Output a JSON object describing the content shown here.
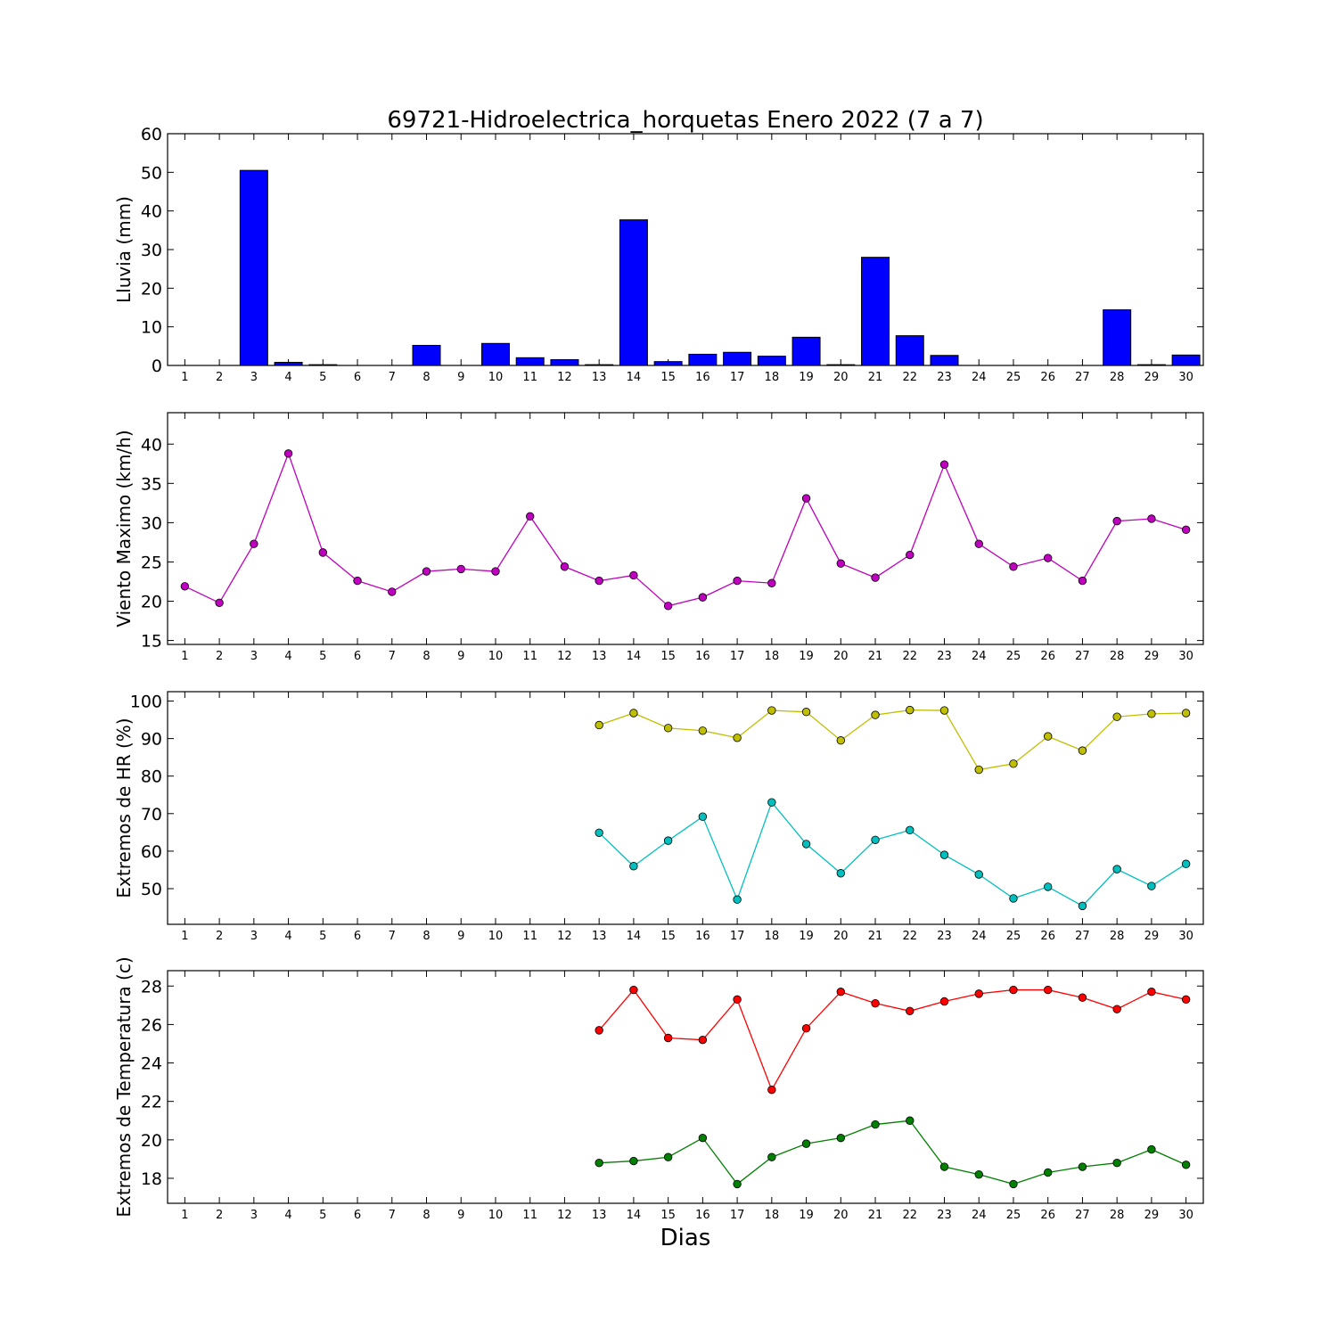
{
  "chart_data": {
    "title": "69721-Hidroelectrica_horquetas Enero 2022  (7 a 7)",
    "xlabel": "Dias",
    "categories": [
      "1",
      "2",
      "3",
      "4",
      "5",
      "6",
      "7",
      "8",
      "9",
      "10",
      "11",
      "12",
      "13",
      "14",
      "15",
      "16",
      "17",
      "18",
      "19",
      "20",
      "21",
      "22",
      "23",
      "24",
      "25",
      "26",
      "27",
      "28",
      "29",
      "30"
    ],
    "panels": [
      {
        "type": "bar",
        "ylabel": "Lluvia (mm)",
        "ylim": [
          0,
          60
        ],
        "yticks": [
          0,
          10,
          20,
          30,
          40,
          50,
          60
        ],
        "series": [
          {
            "color": "#0000ff",
            "values": [
              0,
              0,
              50.5,
              0.8,
              0.2,
              0,
              0,
              5.2,
              0,
              5.7,
              2.0,
              1.5,
              0.2,
              37.7,
              1.0,
              2.9,
              3.4,
              2.4,
              7.3,
              0.2,
              28.0,
              7.7,
              2.6,
              0,
              0,
              0,
              0,
              14.4,
              0.2,
              2.7
            ]
          }
        ]
      },
      {
        "type": "line",
        "ylabel": "Viento Maximo (km/h)",
        "ylim": [
          14.5,
          44
        ],
        "yticks": [
          15,
          20,
          25,
          30,
          35,
          40
        ],
        "series": [
          {
            "color": "#bf00bf",
            "values": [
              21.9,
              19.8,
              27.3,
              38.8,
              26.2,
              22.6,
              21.2,
              23.8,
              24.1,
              23.8,
              30.8,
              24.4,
              22.6,
              23.3,
              19.4,
              20.5,
              22.6,
              22.3,
              33.1,
              24.8,
              23.0,
              25.9,
              37.4,
              27.3,
              24.4,
              25.5,
              22.6,
              30.2,
              30.5,
              29.1
            ]
          }
        ]
      },
      {
        "type": "line",
        "ylabel": "Extremos de HR (%)",
        "ylim": [
          40.5,
          102.5
        ],
        "yticks": [
          50,
          60,
          70,
          80,
          90,
          100
        ],
        "series": [
          {
            "color": "#bfbf00",
            "values": [
              null,
              null,
              null,
              null,
              null,
              null,
              null,
              null,
              null,
              null,
              null,
              null,
              93.6,
              96.8,
              92.8,
              92.1,
              90.2,
              97.5,
              97.1,
              89.5,
              96.3,
              97.6,
              97.5,
              81.7,
              83.3,
              90.6,
              86.8,
              95.8,
              96.6,
              96.8
            ]
          },
          {
            "color": "#00bfbf",
            "values": [
              null,
              null,
              null,
              null,
              null,
              null,
              null,
              null,
              null,
              null,
              null,
              null,
              64.9,
              56.0,
              62.8,
              69.2,
              47.1,
              73.0,
              61.9,
              54.1,
              63.0,
              65.6,
              59.0,
              53.8,
              47.4,
              50.5,
              45.4,
              55.2,
              50.7,
              56.6
            ]
          }
        ]
      },
      {
        "type": "line",
        "ylabel": "Extremos de Temperatura (c)",
        "ylim": [
          16.7,
          28.8
        ],
        "yticks": [
          18,
          20,
          22,
          24,
          26,
          28
        ],
        "series": [
          {
            "color": "#ff0000",
            "values": [
              null,
              null,
              null,
              null,
              null,
              null,
              null,
              null,
              null,
              null,
              null,
              null,
              25.7,
              27.8,
              25.3,
              25.2,
              27.3,
              22.6,
              25.8,
              27.7,
              27.1,
              26.7,
              27.2,
              27.6,
              27.8,
              27.8,
              27.4,
              26.8,
              27.7,
              27.3
            ]
          },
          {
            "color": "#008000",
            "values": [
              null,
              null,
              null,
              null,
              null,
              null,
              null,
              null,
              null,
              null,
              null,
              null,
              18.8,
              18.9,
              19.1,
              20.1,
              17.7,
              19.1,
              19.8,
              20.1,
              20.8,
              21.0,
              18.6,
              18.2,
              17.7,
              18.3,
              18.6,
              18.8,
              19.5,
              18.7
            ]
          }
        ]
      }
    ]
  }
}
